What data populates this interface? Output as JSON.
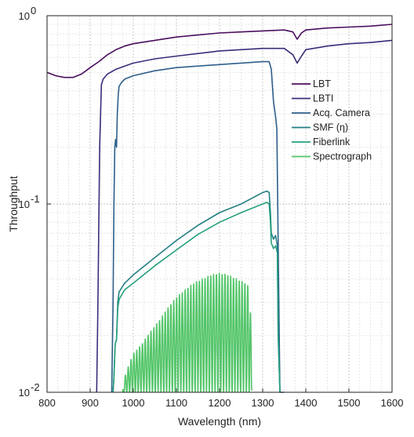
{
  "chart_data": {
    "type": "line",
    "title": "",
    "xlabel": "Wavelength (nm)",
    "ylabel": "Throughput",
    "xlim": [
      800,
      1600
    ],
    "ylim": [
      0.01,
      1
    ],
    "yscale": "log",
    "grid": true,
    "legend_position": "top-right",
    "xticks": [
      800,
      900,
      1000,
      1100,
      1200,
      1300,
      1400,
      1500,
      1600
    ],
    "yticks": [
      {
        "value": 0.01,
        "base": "10",
        "exp": "-2"
      },
      {
        "value": 0.1,
        "base": "10",
        "exp": "-1"
      },
      {
        "value": 1,
        "base": "10",
        "exp": "0"
      }
    ],
    "series": [
      {
        "name": "LBT",
        "color": "#4b0e5e",
        "x": [
          800,
          820,
          840,
          860,
          880,
          900,
          920,
          940,
          960,
          980,
          1000,
          1050,
          1100,
          1150,
          1200,
          1250,
          1300,
          1350,
          1370,
          1380,
          1390,
          1400,
          1450,
          1500,
          1550,
          1600
        ],
        "y": [
          0.5,
          0.48,
          0.47,
          0.47,
          0.49,
          0.53,
          0.57,
          0.62,
          0.66,
          0.69,
          0.71,
          0.74,
          0.77,
          0.79,
          0.81,
          0.82,
          0.83,
          0.84,
          0.82,
          0.75,
          0.81,
          0.84,
          0.86,
          0.87,
          0.88,
          0.9
        ]
      },
      {
        "name": "LBTI",
        "color": "#3b2c7a",
        "x": [
          915,
          918,
          922,
          926,
          930,
          940,
          960,
          980,
          1000,
          1050,
          1100,
          1150,
          1200,
          1250,
          1300,
          1350,
          1370,
          1380,
          1390,
          1400,
          1450,
          1500,
          1550,
          1600
        ],
        "y": [
          0.01,
          0.03,
          0.2,
          0.43,
          0.46,
          0.49,
          0.52,
          0.54,
          0.56,
          0.59,
          0.61,
          0.63,
          0.65,
          0.66,
          0.67,
          0.67,
          0.62,
          0.56,
          0.61,
          0.66,
          0.69,
          0.71,
          0.72,
          0.74
        ]
      },
      {
        "name": "Acq. Camera",
        "color": "#2f5f8a",
        "x": [
          950,
          953,
          955,
          957,
          959,
          961,
          963,
          965,
          967,
          972,
          980,
          1000,
          1050,
          1100,
          1150,
          1200,
          1250,
          1300,
          1315,
          1320,
          1325,
          1330,
          1333,
          1336,
          1340,
          1345,
          1350
        ],
        "y": [
          0.01,
          0.03,
          0.1,
          0.2,
          0.22,
          0.2,
          0.3,
          0.38,
          0.42,
          0.44,
          0.46,
          0.48,
          0.51,
          0.53,
          0.54,
          0.55,
          0.56,
          0.57,
          0.57,
          0.52,
          0.35,
          0.29,
          0.25,
          0.06,
          0.01,
          0.01,
          0.01
        ]
      },
      {
        "name": "SMF  (η)",
        "color": "#237f84",
        "x": [
          953,
          955,
          958,
          961,
          964,
          967,
          970,
          980,
          1000,
          1050,
          1100,
          1150,
          1200,
          1250,
          1300,
          1310,
          1315,
          1318,
          1320,
          1325,
          1330,
          1334,
          1336,
          1340
        ],
        "y": [
          0.01,
          0.012,
          0.018,
          0.019,
          0.03,
          0.034,
          0.035,
          0.038,
          0.042,
          0.052,
          0.064,
          0.077,
          0.09,
          0.1,
          0.115,
          0.117,
          0.115,
          0.09,
          0.07,
          0.065,
          0.068,
          0.06,
          0.02,
          0.01
        ]
      },
      {
        "name": "Fiberlink",
        "color": "#25a07e",
        "x": [
          953,
          955,
          958,
          961,
          964,
          967,
          970,
          980,
          1000,
          1050,
          1100,
          1150,
          1200,
          1250,
          1300,
          1310,
          1315,
          1318,
          1320,
          1325,
          1330,
          1334,
          1336,
          1340
        ],
        "y": [
          0.01,
          0.012,
          0.018,
          0.019,
          0.028,
          0.031,
          0.032,
          0.035,
          0.038,
          0.047,
          0.057,
          0.069,
          0.08,
          0.09,
          0.1,
          0.102,
          0.1,
          0.08,
          0.062,
          0.058,
          0.06,
          0.055,
          0.02,
          0.01
        ]
      },
      {
        "name": "Spectrograph",
        "color": "#53c569",
        "x": [
          975,
          980,
          990,
          1000,
          1020,
          1040,
          1060,
          1080,
          1100,
          1120,
          1140,
          1160,
          1180,
          1200,
          1220,
          1240,
          1260,
          1270,
          1275
        ],
        "y": [
          0.01,
          0.012,
          0.014,
          0.016,
          0.018,
          0.021,
          0.024,
          0.028,
          0.032,
          0.035,
          0.038,
          0.04,
          0.042,
          0.043,
          0.042,
          0.04,
          0.038,
          0.036,
          0.01
        ],
        "modulation": "dense fringing, troughs down to 0.01"
      }
    ]
  }
}
